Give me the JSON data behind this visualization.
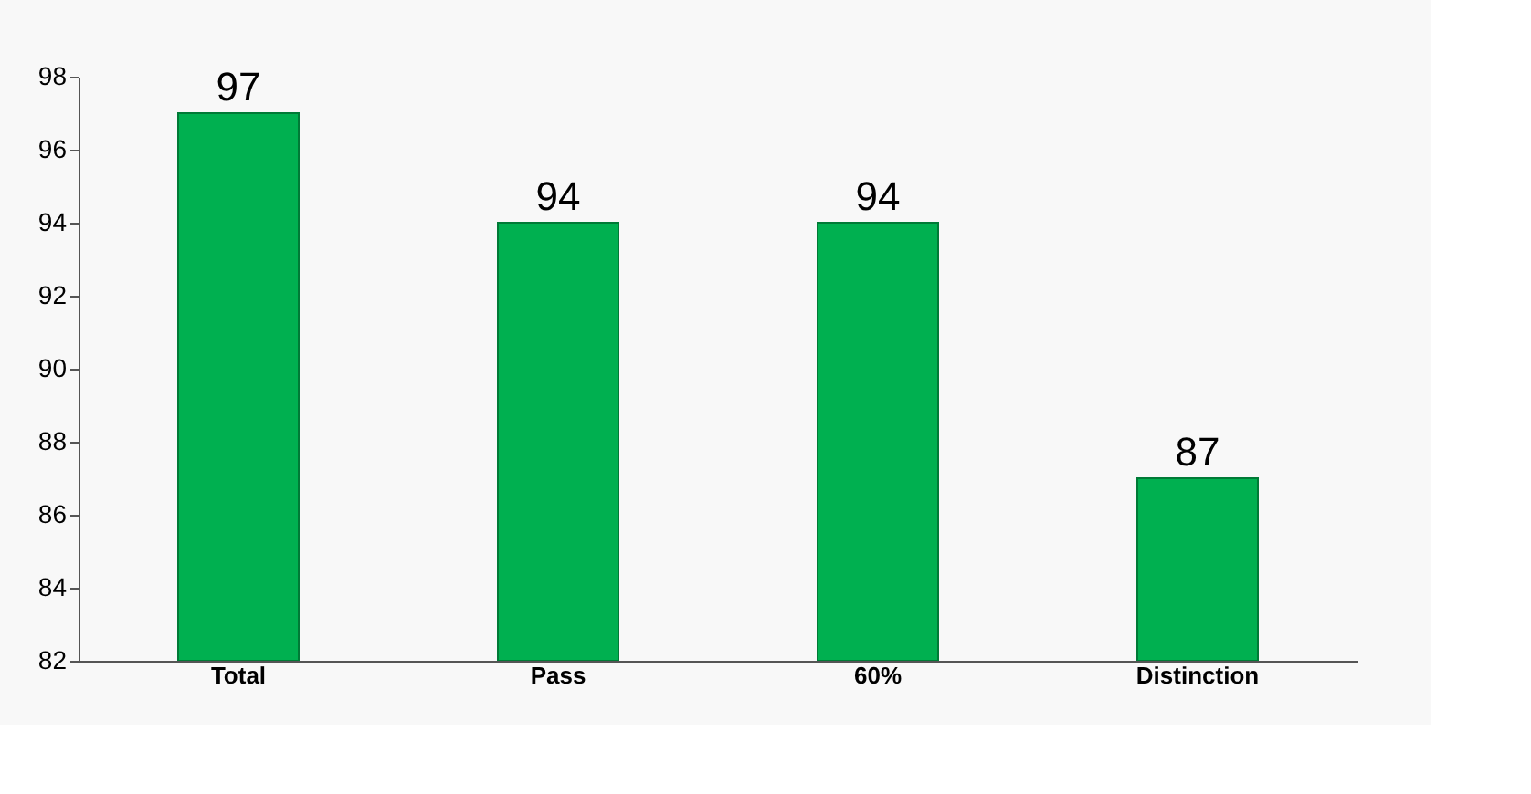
{
  "chart_data": {
    "type": "bar",
    "categories": [
      "Total",
      "Pass",
      "60%",
      "Distinction"
    ],
    "values": [
      97,
      94,
      94,
      87
    ],
    "color": "#00b050",
    "ylim": [
      82,
      98
    ],
    "yticks": [
      82,
      84,
      86,
      88,
      90,
      92,
      94,
      96,
      98
    ],
    "grid": false,
    "data_labels": true
  }
}
